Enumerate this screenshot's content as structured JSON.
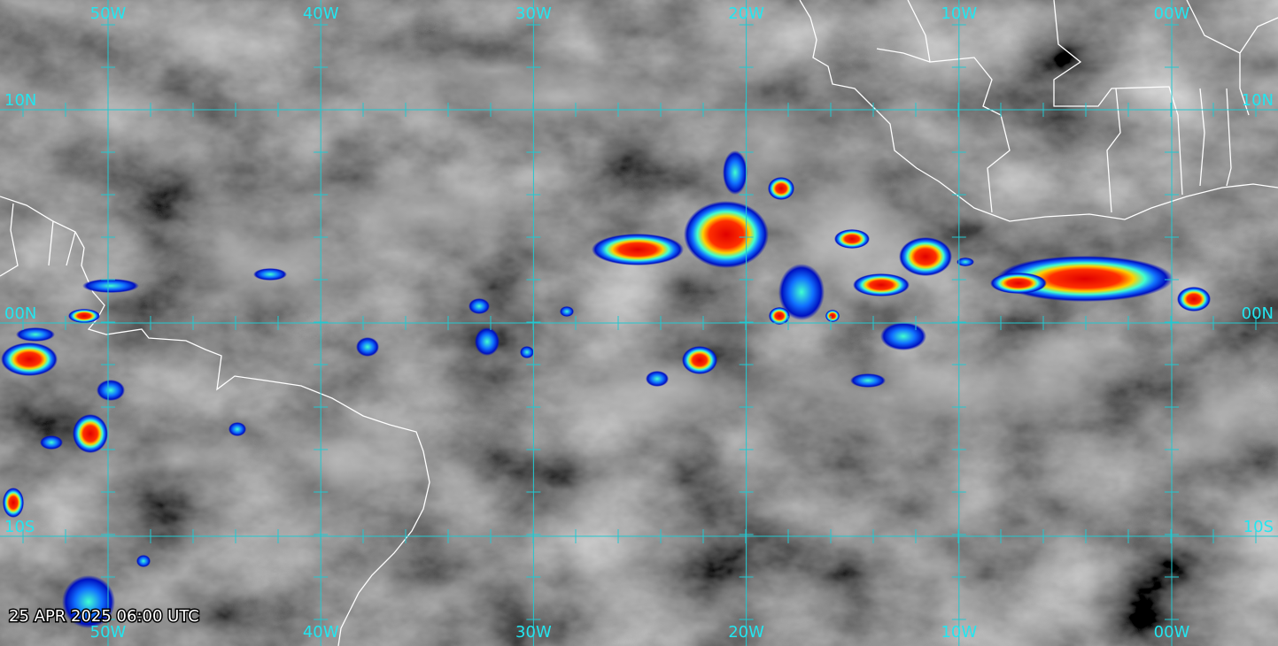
{
  "grid": {
    "longitudes": [
      "50W",
      "40W",
      "30W",
      "20W",
      "10W",
      "00W"
    ],
    "latitudes": [
      "10N",
      "00N",
      "10S"
    ]
  },
  "timestamp": "25 APR 2025 06:00 UTC"
}
